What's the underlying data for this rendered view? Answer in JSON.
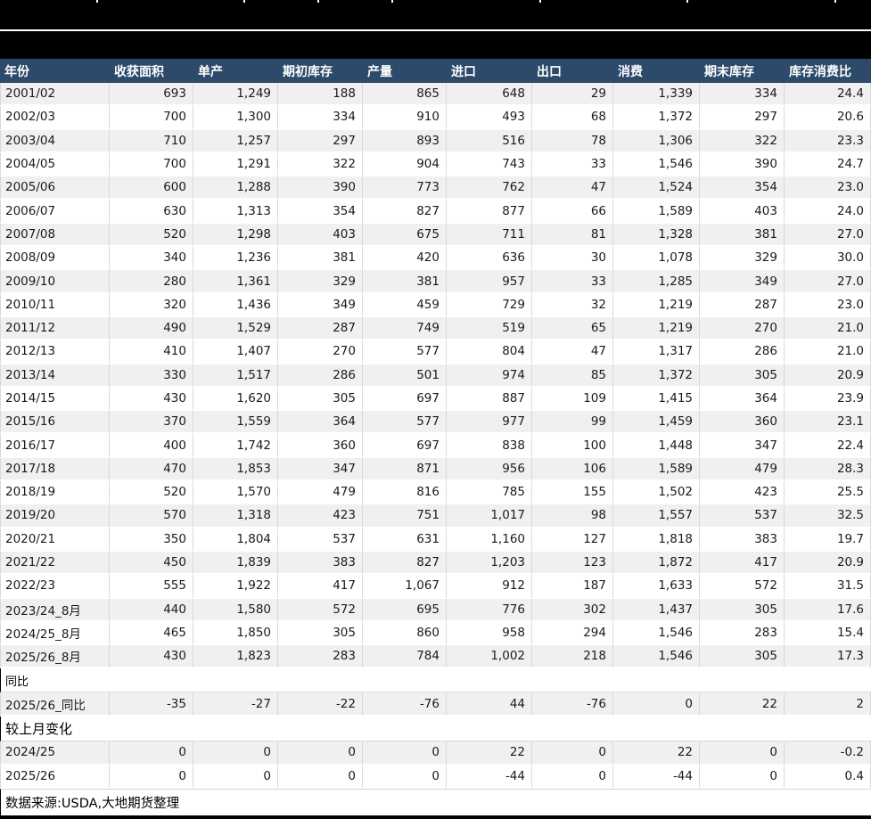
{
  "colors": {
    "header_bg": "#2d4a6b",
    "stripe_row_bg": "#f0f0f0",
    "grid_border": "#d9d9d9",
    "banner_bg": "#000000"
  },
  "table": {
    "columns": [
      "年份",
      "收获面积",
      "单产",
      "期初库存",
      "产量",
      "进口",
      "出口",
      "消费",
      "期末库存",
      "库存消费比"
    ],
    "rows": [
      [
        "2001/02",
        "693",
        "1,249",
        "188",
        "865",
        "648",
        "29",
        "1,339",
        "334",
        "24.4"
      ],
      [
        "2002/03",
        "700",
        "1,300",
        "334",
        "910",
        "493",
        "68",
        "1,372",
        "297",
        "20.6"
      ],
      [
        "2003/04",
        "710",
        "1,257",
        "297",
        "893",
        "516",
        "78",
        "1,306",
        "322",
        "23.3"
      ],
      [
        "2004/05",
        "700",
        "1,291",
        "322",
        "904",
        "743",
        "33",
        "1,546",
        "390",
        "24.7"
      ],
      [
        "2005/06",
        "600",
        "1,288",
        "390",
        "773",
        "762",
        "47",
        "1,524",
        "354",
        "23.0"
      ],
      [
        "2006/07",
        "630",
        "1,313",
        "354",
        "827",
        "877",
        "66",
        "1,589",
        "403",
        "24.0"
      ],
      [
        "2007/08",
        "520",
        "1,298",
        "403",
        "675",
        "711",
        "81",
        "1,328",
        "381",
        "27.0"
      ],
      [
        "2008/09",
        "340",
        "1,236",
        "381",
        "420",
        "636",
        "30",
        "1,078",
        "329",
        "30.0"
      ],
      [
        "2009/10",
        "280",
        "1,361",
        "329",
        "381",
        "957",
        "33",
        "1,285",
        "349",
        "27.0"
      ],
      [
        "2010/11",
        "320",
        "1,436",
        "349",
        "459",
        "729",
        "32",
        "1,219",
        "287",
        "23.0"
      ],
      [
        "2011/12",
        "490",
        "1,529",
        "287",
        "749",
        "519",
        "65",
        "1,219",
        "270",
        "21.0"
      ],
      [
        "2012/13",
        "410",
        "1,407",
        "270",
        "577",
        "804",
        "47",
        "1,317",
        "286",
        "21.0"
      ],
      [
        "2013/14",
        "330",
        "1,517",
        "286",
        "501",
        "974",
        "85",
        "1,372",
        "305",
        "20.9"
      ],
      [
        "2014/15",
        "430",
        "1,620",
        "305",
        "697",
        "887",
        "109",
        "1,415",
        "364",
        "23.9"
      ],
      [
        "2015/16",
        "370",
        "1,559",
        "364",
        "577",
        "977",
        "99",
        "1,459",
        "360",
        "23.1"
      ],
      [
        "2016/17",
        "400",
        "1,742",
        "360",
        "697",
        "838",
        "100",
        "1,448",
        "347",
        "22.4"
      ],
      [
        "2017/18",
        "470",
        "1,853",
        "347",
        "871",
        "956",
        "106",
        "1,589",
        "479",
        "28.3"
      ],
      [
        "2018/19",
        "520",
        "1,570",
        "479",
        "816",
        "785",
        "155",
        "1,502",
        "423",
        "25.5"
      ],
      [
        "2019/20",
        "570",
        "1,318",
        "423",
        "751",
        "1,017",
        "98",
        "1,557",
        "537",
        "32.5"
      ],
      [
        "2020/21",
        "350",
        "1,804",
        "537",
        "631",
        "1,160",
        "127",
        "1,818",
        "383",
        "19.7"
      ],
      [
        "2021/22",
        "450",
        "1,839",
        "383",
        "827",
        "1,203",
        "123",
        "1,872",
        "417",
        "20.9"
      ],
      [
        "2022/23",
        "555",
        "1,922",
        "417",
        "1,067",
        "912",
        "187",
        "1,633",
        "572",
        "31.5"
      ],
      [
        "2023/24_8月",
        "440",
        "1,580",
        "572",
        "695",
        "776",
        "302",
        "1,437",
        "305",
        "17.6"
      ],
      [
        "2024/25_8月",
        "465",
        "1,850",
        "305",
        "860",
        "958",
        "294",
        "1,546",
        "283",
        "15.4"
      ],
      [
        "2025/26_8月",
        "430",
        "1,823",
        "283",
        "784",
        "1,002",
        "218",
        "1,546",
        "305",
        "17.3"
      ]
    ]
  },
  "yoy_section": {
    "label": "同比",
    "row": [
      "2025/26_同比",
      "-35",
      "-27",
      "-22",
      "-76",
      "44",
      "-76",
      "0",
      "22",
      "2"
    ]
  },
  "mom_section": {
    "label": "较上月变化",
    "rows": [
      [
        "2024/25",
        "0",
        "0",
        "0",
        "0",
        "22",
        "0",
        "22",
        "0",
        "-0.2"
      ],
      [
        "2025/26",
        "0",
        "0",
        "0",
        "0",
        "-44",
        "0",
        "-44",
        "0",
        "0.4"
      ]
    ]
  },
  "footer": {
    "source": "数据来源:USDA,大地期货整理"
  }
}
